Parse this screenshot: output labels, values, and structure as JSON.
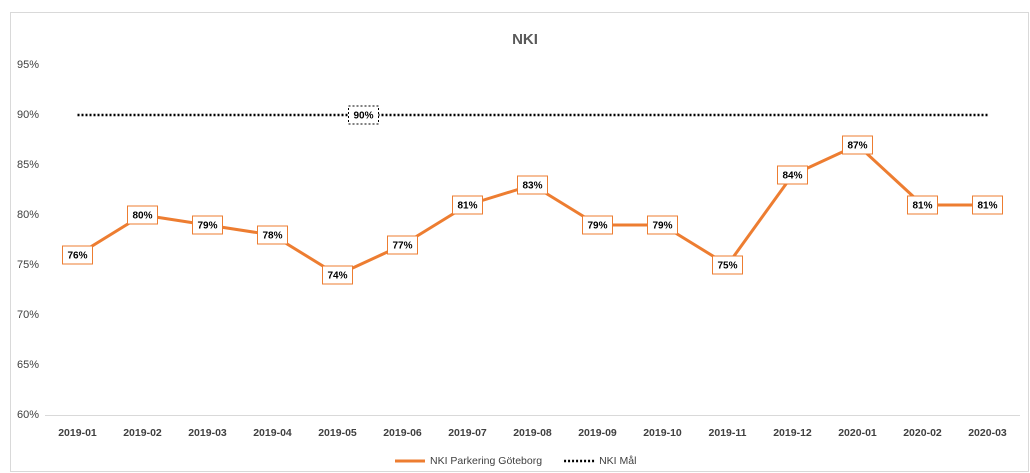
{
  "chart_data": {
    "type": "line",
    "title": "NKI",
    "categories": [
      "2019-01",
      "2019-02",
      "2019-03",
      "2019-04",
      "2019-05",
      "2019-06",
      "2019-07",
      "2019-08",
      "2019-09",
      "2019-10",
      "2019-11",
      "2019-12",
      "2020-01",
      "2020-02",
      "2020-03"
    ],
    "series": [
      {
        "name": "NKI Parkering Göteborg",
        "color": "#ed7d31",
        "style": "solid",
        "values": [
          76,
          80,
          79,
          78,
          74,
          77,
          81,
          83,
          79,
          79,
          75,
          84,
          87,
          81,
          81
        ],
        "value_labels": [
          "76%",
          "80%",
          "79%",
          "78%",
          "74%",
          "77%",
          "81%",
          "83%",
          "79%",
          "79%",
          "75%",
          "84%",
          "87%",
          "81%",
          "81%"
        ]
      },
      {
        "name": "NKI Mål",
        "color": "#000000",
        "style": "dotted",
        "values": [
          90,
          90,
          90,
          90,
          90,
          90,
          90,
          90,
          90,
          90,
          90,
          90,
          90,
          90,
          90
        ],
        "value_labels": [
          null,
          null,
          null,
          null,
          "90%",
          null,
          null,
          null,
          null,
          null,
          null,
          null,
          null,
          null,
          null
        ]
      }
    ],
    "ylim": [
      60,
      95
    ],
    "yticks": [
      {
        "value": 60,
        "label": "60%"
      },
      {
        "value": 65,
        "label": "65%"
      },
      {
        "value": 70,
        "label": "70%"
      },
      {
        "value": 75,
        "label": "75%"
      },
      {
        "value": 80,
        "label": "80%"
      },
      {
        "value": 85,
        "label": "85%"
      },
      {
        "value": 90,
        "label": "90%"
      },
      {
        "value": 95,
        "label": "95%"
      }
    ],
    "grid": false,
    "legend": "bottom"
  }
}
